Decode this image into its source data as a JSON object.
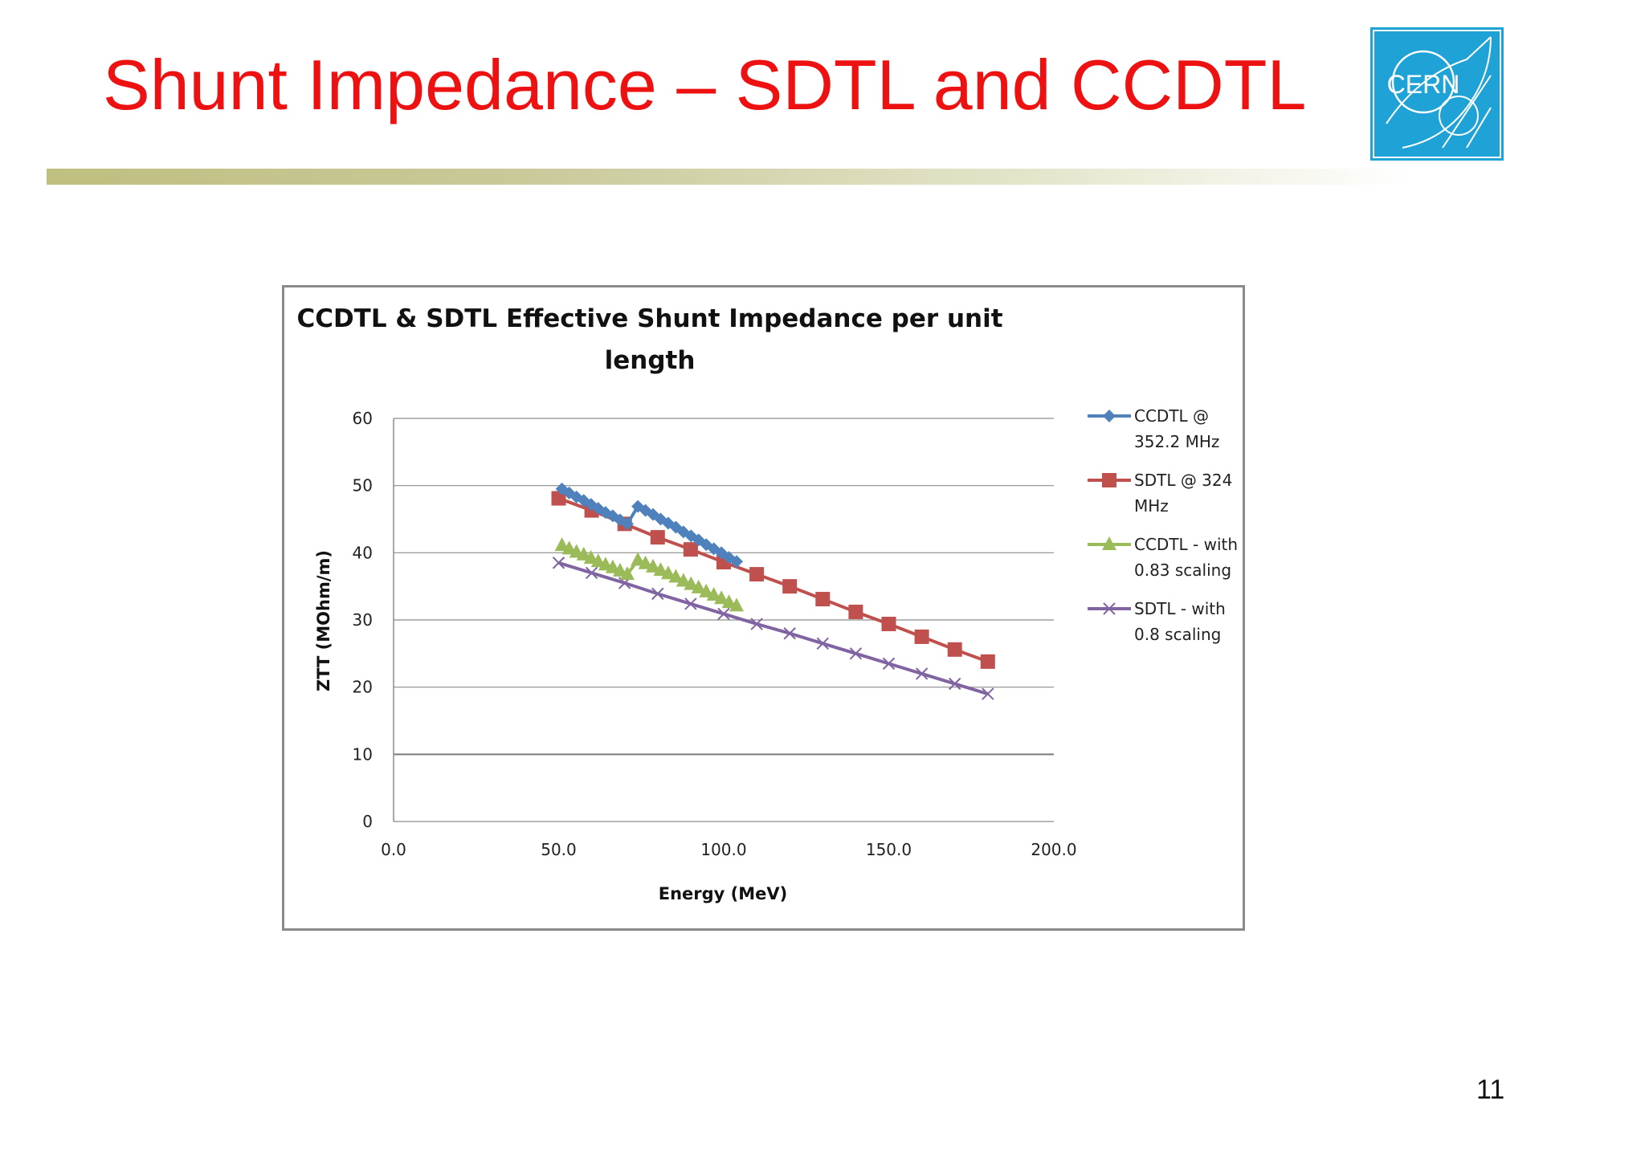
{
  "slide": {
    "title": "Shunt Impedance – SDTL and CCDTL",
    "page_number": "11",
    "title_color": "#ee1111",
    "logo_text": "CERN",
    "logo_color": "#1fa3d6"
  },
  "chart_data": {
    "type": "line",
    "title_line1": "CCDTL & SDTL Effective  Shunt Impedance per unit",
    "title_line2": "length",
    "xlabel": "Energy (MeV)",
    "ylabel": "ZTT (MOhm/m)",
    "xlim": [
      0,
      200
    ],
    "ylim": [
      0,
      60
    ],
    "x_ticks": [
      "0.0",
      "50.0",
      "100.0",
      "150.0",
      "200.0"
    ],
    "y_ticks": [
      "0",
      "10",
      "20",
      "30",
      "40",
      "50",
      "60"
    ],
    "grid": "horizontal",
    "legend_position": "right",
    "series": [
      {
        "name_line1": "CCDTL @",
        "name_line2": "352.2 MHz",
        "color": "#4f81bd",
        "marker": "diamond",
        "points": [
          [
            51.0,
            49.5
          ],
          [
            53.2,
            48.9
          ],
          [
            55.4,
            48.3
          ],
          [
            57.6,
            47.8
          ],
          [
            59.8,
            47.2
          ],
          [
            62.0,
            46.6
          ],
          [
            64.2,
            46.0
          ],
          [
            66.4,
            45.5
          ],
          [
            68.6,
            44.9
          ],
          [
            70.8,
            44.3
          ],
          [
            74.0,
            46.9
          ],
          [
            76.3,
            46.3
          ],
          [
            78.6,
            45.7
          ],
          [
            80.9,
            45.0
          ],
          [
            83.2,
            44.4
          ],
          [
            85.5,
            43.8
          ],
          [
            87.8,
            43.1
          ],
          [
            90.1,
            42.5
          ],
          [
            92.4,
            41.9
          ],
          [
            94.7,
            41.2
          ],
          [
            97.0,
            40.6
          ],
          [
            99.3,
            40.0
          ],
          [
            101.6,
            39.3
          ],
          [
            103.9,
            38.7
          ]
        ]
      },
      {
        "name_line1": "SDTL @ 324",
        "name_line2": "MHz",
        "color": "#c0504d",
        "marker": "square",
        "points": [
          [
            50,
            48.1
          ],
          [
            60,
            46.3
          ],
          [
            70,
            44.3
          ],
          [
            80,
            42.3
          ],
          [
            90,
            40.5
          ],
          [
            100,
            38.6
          ],
          [
            110,
            36.8
          ],
          [
            120,
            35.0
          ],
          [
            130,
            33.1
          ],
          [
            140,
            31.2
          ],
          [
            150,
            29.4
          ],
          [
            160,
            27.5
          ],
          [
            170,
            25.6
          ],
          [
            180,
            23.8
          ]
        ]
      },
      {
        "name_line1": "CCDTL - with",
        "name_line2": "0.83 scaling",
        "color": "#9bbb59",
        "marker": "triangle",
        "points": [
          [
            51.0,
            41.1
          ],
          [
            53.2,
            40.6
          ],
          [
            55.4,
            40.1
          ],
          [
            57.6,
            39.7
          ],
          [
            59.8,
            39.2
          ],
          [
            62.0,
            38.7
          ],
          [
            64.2,
            38.2
          ],
          [
            66.4,
            37.8
          ],
          [
            68.6,
            37.3
          ],
          [
            70.8,
            36.8
          ],
          [
            74.0,
            38.9
          ],
          [
            76.3,
            38.4
          ],
          [
            78.6,
            37.9
          ],
          [
            80.9,
            37.4
          ],
          [
            83.2,
            36.9
          ],
          [
            85.5,
            36.4
          ],
          [
            87.8,
            35.8
          ],
          [
            90.1,
            35.3
          ],
          [
            92.4,
            34.8
          ],
          [
            94.7,
            34.2
          ],
          [
            97.0,
            33.7
          ],
          [
            99.3,
            33.2
          ],
          [
            101.6,
            32.6
          ],
          [
            103.9,
            32.1
          ]
        ]
      },
      {
        "name_line1": "SDTL - with",
        "name_line2": "0.8 scaling",
        "color": "#8064a2",
        "marker": "x",
        "points": [
          [
            50,
            38.5
          ],
          [
            60,
            37.0
          ],
          [
            70,
            35.5
          ],
          [
            80,
            33.9
          ],
          [
            90,
            32.4
          ],
          [
            100,
            30.9
          ],
          [
            110,
            29.4
          ],
          [
            120,
            28.0
          ],
          [
            130,
            26.5
          ],
          [
            140,
            25.0
          ],
          [
            150,
            23.5
          ],
          [
            160,
            22.0
          ],
          [
            170,
            20.5
          ],
          [
            180,
            19.0
          ]
        ]
      }
    ]
  }
}
